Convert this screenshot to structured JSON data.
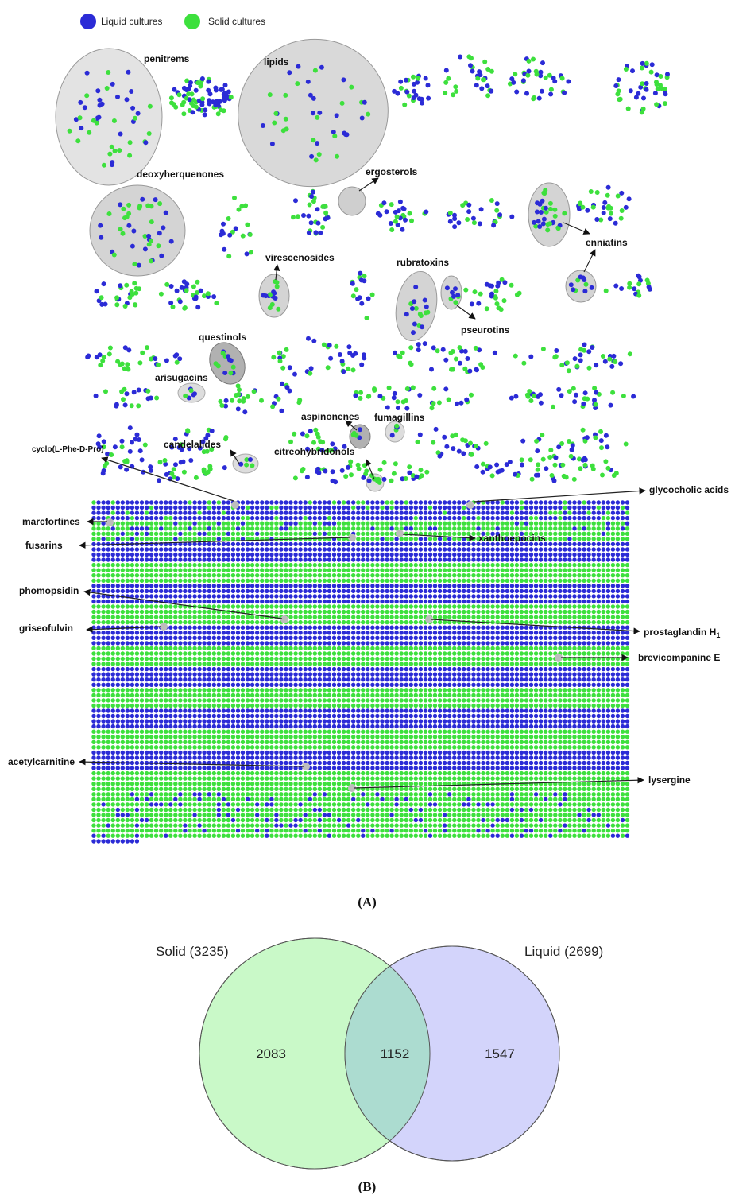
{
  "legend": {
    "items": [
      {
        "label": "Liquid cultures",
        "color": "#2b2bd6"
      },
      {
        "label": "Solid cultures",
        "color": "#3de03d"
      }
    ]
  },
  "network": {
    "cluster_labels": [
      "penitrems",
      "lipids",
      "deoxyherquenones",
      "ergosterols",
      "virescenosides",
      "rubratoxins",
      "enniatins",
      "pseurotins",
      "questinols",
      "arisugacins",
      "aspinonenes",
      "fumagillins",
      "candelalides",
      "citreohybridonols"
    ],
    "singleton_labels": [
      "cyclo(L-Phe-D-Pro)",
      "glycocholic acids",
      "marcfortines",
      "fusarins",
      "xanthoepocins",
      "phomopsidin",
      "griseofulvin",
      "prostaglandin H",
      "brevicompanine E",
      "acetylcarnitine",
      "lysergine"
    ],
    "prostaglandin_subscript": "1"
  },
  "panel_a_label": "(A)",
  "venn": {
    "sets": [
      {
        "name": "Solid",
        "size": 3235,
        "color": "#c9f9c8"
      },
      {
        "name": "Liquid",
        "size": 2699,
        "color": "#d3d4fb"
      }
    ],
    "title_solid": "Solid (3235)",
    "title_liquid": "Liquid (2699)",
    "only_solid": "2083",
    "shared": "1152",
    "only_liquid": "1547",
    "overlap_color": "#acdcd0"
  },
  "panel_b_label": "(B)"
}
